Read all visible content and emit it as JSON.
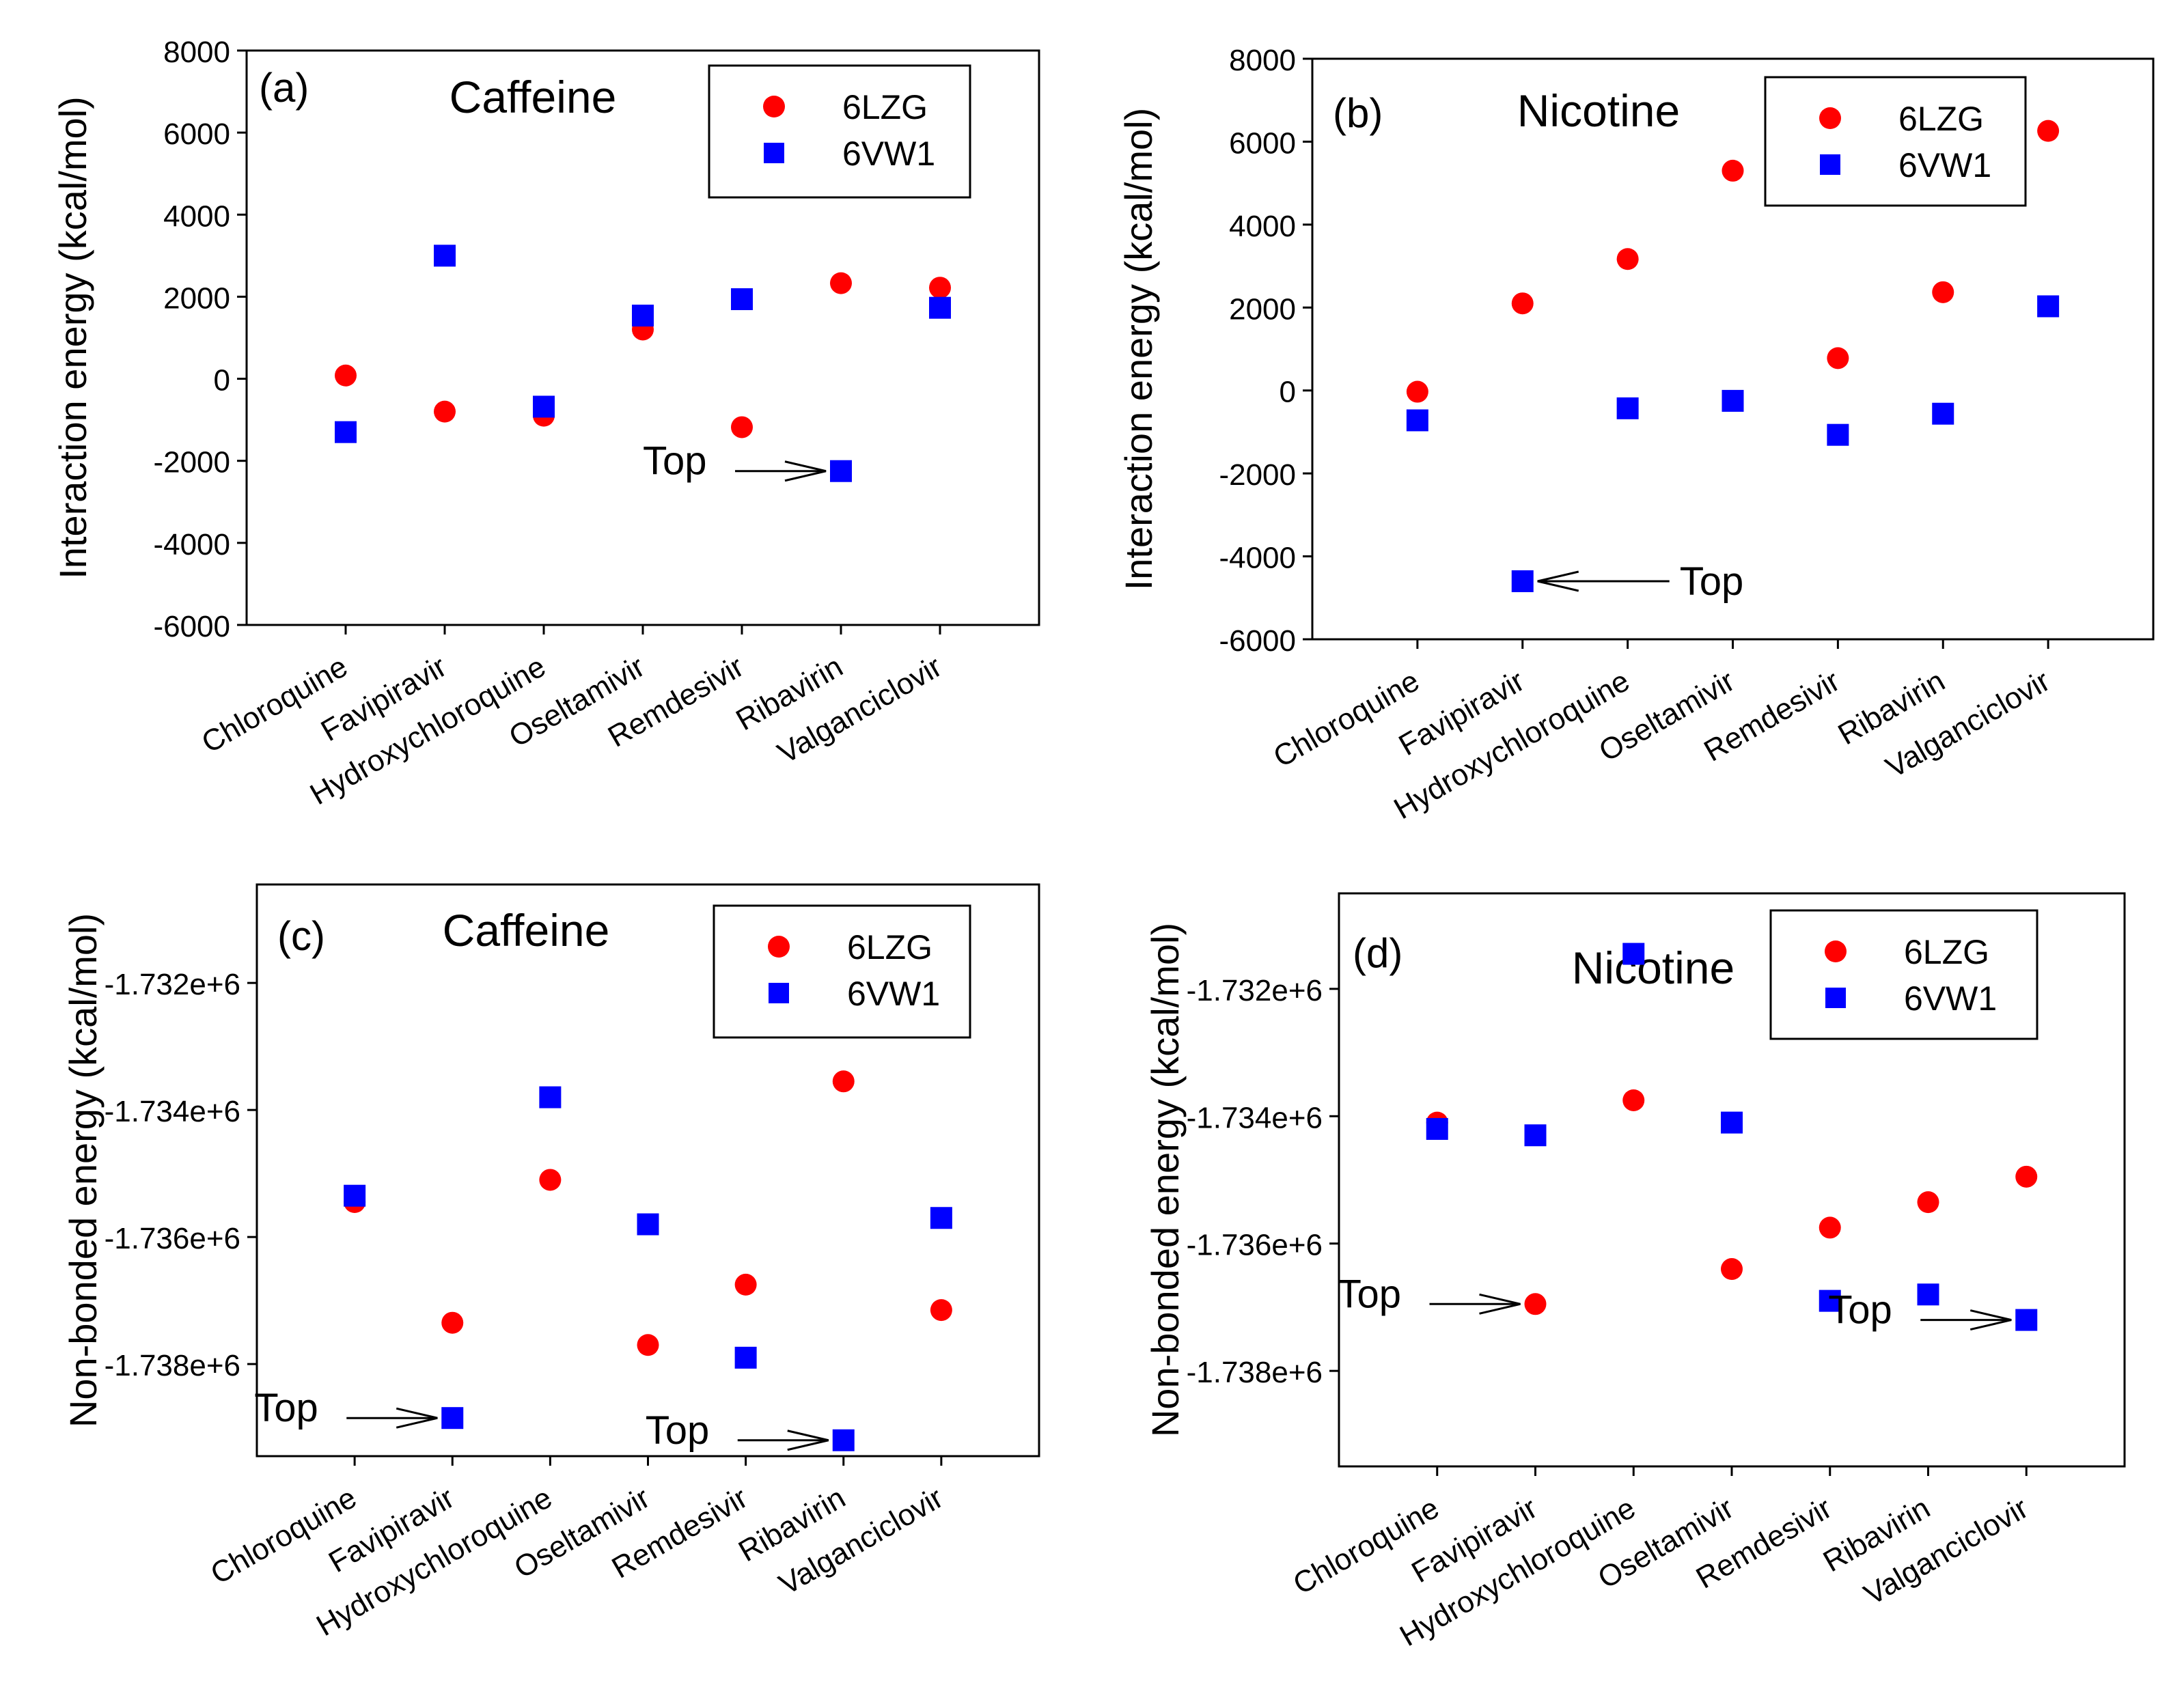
{
  "figure": {
    "categories": [
      "Chloroquine",
      "Favipiravir",
      "Hydroxychloroquine",
      "Oseltamivir",
      "Remdesivir",
      "Ribavirin",
      "Valganciclovir"
    ],
    "colors": {
      "6LZG": "#ff0000",
      "6VW1": "#0000ff"
    }
  },
  "chart_data": [
    {
      "panel": "(a)",
      "type": "scatter",
      "title": "Caffeine",
      "ylabel": "Interaction energy (kcal/mol)",
      "xlabel": "",
      "categories": [
        "Chloroquine",
        "Favipiravir",
        "Hydroxychloroquine",
        "Oseltamivir",
        "Remdesivir",
        "Ribavirin",
        "Valganciclovir"
      ],
      "ylim": [
        -6000,
        8000
      ],
      "yticks": [
        -6000,
        -4000,
        -2000,
        0,
        2000,
        4000,
        6000,
        8000
      ],
      "ytick_labels": [
        "-6000",
        "-4000",
        "-2000",
        "0",
        "2000",
        "4000",
        "6000",
        "8000"
      ],
      "legend_position": "top-right",
      "series": [
        {
          "name": "6LZG",
          "marker": "circle",
          "values": [
            80,
            -800,
            -900,
            1200,
            -1180,
            2330,
            2220
          ]
        },
        {
          "name": "6VW1",
          "marker": "square",
          "values": [
            -1300,
            3000,
            -680,
            1540,
            1940,
            -2250,
            1730
          ]
        }
      ],
      "annotations": [
        {
          "text": "Top",
          "category": "Ribavirin",
          "series": "6VW1",
          "side": "left"
        }
      ]
    },
    {
      "panel": "(b)",
      "type": "scatter",
      "title": "Nicotine",
      "ylabel": "Interaction energy (kcal/mol)",
      "xlabel": "",
      "categories": [
        "Chloroquine",
        "Favipiravir",
        "Hydroxychloroquine",
        "Oseltamivir",
        "Remdesivir",
        "Ribavirin",
        "Valganciclovir"
      ],
      "ylim": [
        -6000,
        8000
      ],
      "yticks": [
        -6000,
        -4000,
        -2000,
        0,
        2000,
        4000,
        6000,
        8000
      ],
      "ytick_labels": [
        "-6000",
        "-4000",
        "-2000",
        "0",
        "2000",
        "4000",
        "6000",
        "8000"
      ],
      "legend_position": "top-right",
      "series": [
        {
          "name": "6LZG",
          "marker": "circle",
          "values": [
            -30,
            2100,
            3170,
            5300,
            780,
            2370,
            6260
          ]
        },
        {
          "name": "6VW1",
          "marker": "square",
          "values": [
            -720,
            -4600,
            -430,
            -250,
            -1070,
            -560,
            2030
          ]
        }
      ],
      "annotations": [
        {
          "text": "Top",
          "category": "Favipiravir",
          "series": "6VW1",
          "side": "right"
        }
      ]
    },
    {
      "panel": "(c)",
      "type": "scatter",
      "title": "Caffeine",
      "ylabel": "Non-bonded energy (kcal/mol)",
      "xlabel": "",
      "categories": [
        "Chloroquine",
        "Favipiravir",
        "Hydroxychloroquine",
        "Oseltamivir",
        "Remdesivir",
        "Ribavirin",
        "Valganciclovir"
      ],
      "ylim": [
        -1739450,
        -1730450
      ],
      "yticks": [
        -1738000,
        -1736000,
        -1734000,
        -1732000
      ],
      "ytick_labels": [
        "-1.738e+6",
        "-1.736e+6",
        "-1.734e+6",
        "-1.732e+6"
      ],
      "legend_position": "top-right",
      "series": [
        {
          "name": "6LZG",
          "marker": "circle",
          "values": [
            -1735450,
            -1737350,
            -1735100,
            -1737700,
            -1736750,
            -1733550,
            -1737150
          ]
        },
        {
          "name": "6VW1",
          "marker": "square",
          "values": [
            -1735350,
            -1738850,
            -1733800,
            -1735800,
            -1737900,
            -1739200,
            -1735700
          ]
        }
      ],
      "annotations": [
        {
          "text": "Top",
          "category": "Favipiravir",
          "series": "6VW1",
          "side": "left"
        },
        {
          "text": "Top",
          "category": "Ribavirin",
          "series": "6VW1",
          "side": "left"
        }
      ]
    },
    {
      "panel": "(d)",
      "type": "scatter",
      "title": "Nicotine",
      "ylabel": "Non-bonded energy (kcal/mol)",
      "xlabel": "",
      "categories": [
        "Chloroquine",
        "Favipiravir",
        "Hydroxychloroquine",
        "Oseltamivir",
        "Remdesivir",
        "Ribavirin",
        "Valganciclovir"
      ],
      "ylim": [
        -1739500,
        -1730500
      ],
      "yticks": [
        -1738000,
        -1736000,
        -1734000,
        -1732000
      ],
      "ytick_labels": [
        "-1.738e+6",
        "-1.736e+6",
        "-1.734e+6",
        "-1.732e+6"
      ],
      "legend_position": "top-right",
      "series": [
        {
          "name": "6LZG",
          "marker": "circle",
          "values": [
            -1734100,
            -1736950,
            -1733750,
            -1736400,
            -1735750,
            -1735350,
            -1734950
          ]
        },
        {
          "name": "6VW1",
          "marker": "square",
          "values": [
            -1734200,
            -1734300,
            -1731450,
            -1734100,
            -1736900,
            -1736800,
            -1737200
          ]
        }
      ],
      "annotations": [
        {
          "text": "Top",
          "category": "Favipiravir",
          "series": "6LZG",
          "side": "left"
        },
        {
          "text": "Top",
          "category": "Valganciclovir",
          "series": "6VW1",
          "side": "left"
        }
      ]
    }
  ]
}
